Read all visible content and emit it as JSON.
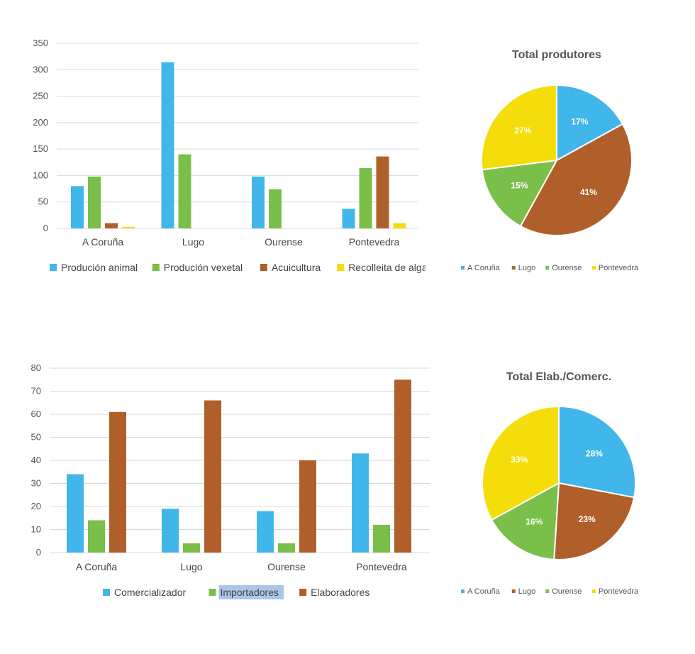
{
  "colors": {
    "blue": "#41b6ea",
    "green": "#79bf4a",
    "brown": "#b05f2a",
    "yellow": "#f5dd0b",
    "grid": "#d9d9d9"
  },
  "chart_data": [
    {
      "type": "bar",
      "categories": [
        "A Coruña",
        "Lugo",
        "Ourense",
        "Pontevedra"
      ],
      "series": [
        {
          "name": "Produción animal",
          "values": [
            80,
            314,
            98,
            37
          ],
          "color": "#41b6ea"
        },
        {
          "name": "Produción vexetal",
          "values": [
            98,
            140,
            74,
            114
          ],
          "color": "#79bf4a"
        },
        {
          "name": "Acuicultura",
          "values": [
            10,
            0,
            0,
            136
          ],
          "color": "#b05f2a"
        },
        {
          "name": "Recolleita de algas",
          "values": [
            3,
            0,
            0,
            10
          ],
          "color": "#f5dd0b"
        }
      ],
      "ylim": [
        0,
        350
      ],
      "yticks": [
        0,
        50,
        100,
        150,
        200,
        250,
        300,
        350
      ],
      "grid": true,
      "legend": "bottom"
    },
    {
      "type": "pie",
      "title": "Total produtores",
      "labels": [
        "A Coruña",
        "Lugo",
        "Ourense",
        "Pontevedra"
      ],
      "values": [
        17,
        41,
        15,
        27
      ],
      "value_labels": [
        "17%",
        "41%",
        "15%",
        "27%"
      ],
      "colors": [
        "#41b6ea",
        "#b05f2a",
        "#79bf4a",
        "#f5dd0b"
      ],
      "legend": "bottom"
    },
    {
      "type": "bar",
      "categories": [
        "A Coruña",
        "Lugo",
        "Ourense",
        "Pontevedra"
      ],
      "series": [
        {
          "name": "Comercializador",
          "values": [
            34,
            19,
            18,
            43
          ],
          "color": "#41b6ea"
        },
        {
          "name": "Importadores",
          "values": [
            14,
            4,
            4,
            12
          ],
          "color": "#79bf4a",
          "highlighted": true
        },
        {
          "name": "Elaboradores",
          "values": [
            61,
            66,
            40,
            75
          ],
          "color": "#b05f2a"
        }
      ],
      "ylim": [
        0,
        80
      ],
      "yticks": [
        0,
        10,
        20,
        30,
        40,
        50,
        60,
        70,
        80
      ],
      "grid": true,
      "legend": "bottom"
    },
    {
      "type": "pie",
      "title": "Total Elab./Comerc.",
      "labels": [
        "A Coruña",
        "Lugo",
        "Ourense",
        "Pontevedra"
      ],
      "values": [
        28,
        23,
        16,
        33
      ],
      "value_labels": [
        "28%",
        "23%",
        "16%",
        "33%"
      ],
      "colors": [
        "#41b6ea",
        "#b05f2a",
        "#79bf4a",
        "#f5dd0b"
      ],
      "legend": "bottom"
    }
  ]
}
